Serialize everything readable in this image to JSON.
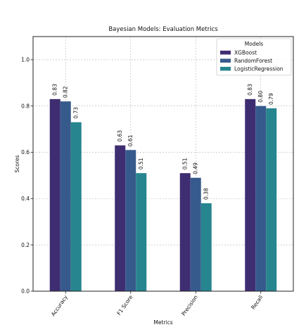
{
  "chart_data": {
    "type": "bar",
    "title": "Bayesian Models: Evaluation Metrics",
    "xlabel": "Metrics",
    "ylabel": "Scores",
    "categories": [
      "Accuracy",
      "F1 Score",
      "Precision",
      "Recall"
    ],
    "series": [
      {
        "name": "XGBoost",
        "values": [
          0.83,
          0.63,
          0.51,
          0.83
        ],
        "color": "#3f2d72"
      },
      {
        "name": "RandomForest",
        "values": [
          0.82,
          0.61,
          0.49,
          0.8
        ],
        "color": "#375a8c"
      },
      {
        "name": "LogisticRegression",
        "values": [
          0.73,
          0.51,
          0.38,
          0.79
        ],
        "color": "#26858e"
      }
    ],
    "value_labels": [
      [
        "0.83",
        "0.63",
        "0.51",
        "0.83"
      ],
      [
        "0.82",
        "0.61",
        "0.49",
        "0.80"
      ],
      [
        "0.73",
        "0.51",
        "0.38",
        "0.79"
      ]
    ],
    "ylim": [
      0,
      1.1
    ],
    "yticks": [
      0.0,
      0.2,
      0.4,
      0.6,
      0.8,
      1.0
    ],
    "ytick_labels": [
      "0.0",
      "0.2",
      "0.4",
      "0.6",
      "0.8",
      "1.0"
    ],
    "grid": true,
    "grid_style": "dashed",
    "legend": {
      "title": "Models",
      "position": "top-right"
    },
    "xtick_rotation": "45-degree"
  }
}
